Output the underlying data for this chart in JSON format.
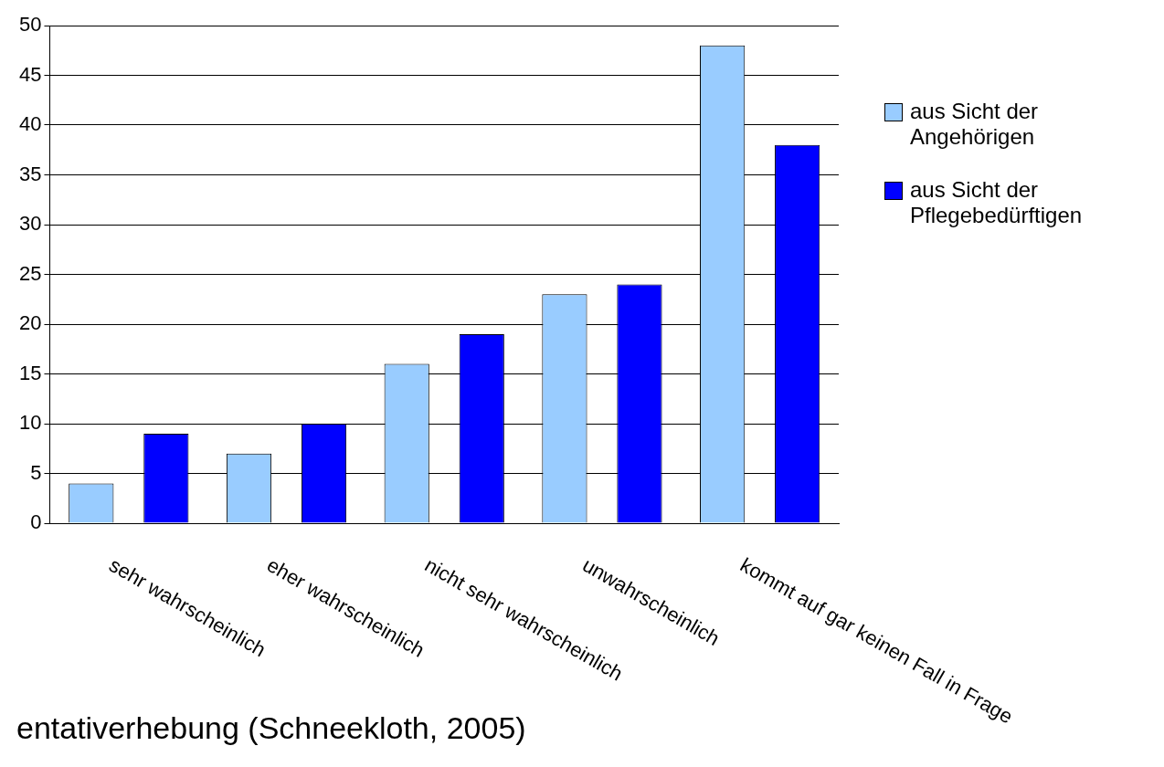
{
  "chart_data": {
    "type": "bar",
    "categories": [
      "sehr wahrscheinlich",
      "eher wahrscheinlich",
      "nicht sehr wahrscheinlich",
      "unwahrscheinlich",
      "kommt auf gar keinen Fall in Frage"
    ],
    "series": [
      {
        "name": "aus Sicht der Angehörigen",
        "color": "#99ccff",
        "values": [
          4,
          7,
          16,
          23,
          48
        ]
      },
      {
        "name": "aus Sicht der Pflegebedürftigen",
        "color": "#0000ff",
        "values": [
          9,
          10,
          19,
          24,
          38
        ]
      }
    ],
    "ylim": [
      0,
      50
    ],
    "yticks": [
      0,
      5,
      10,
      15,
      20,
      25,
      30,
      35,
      40,
      45,
      50
    ],
    "grid": "y",
    "legend": "right",
    "annotations": [
      "entativerhebung (Schneekloth, 2005)"
    ]
  }
}
